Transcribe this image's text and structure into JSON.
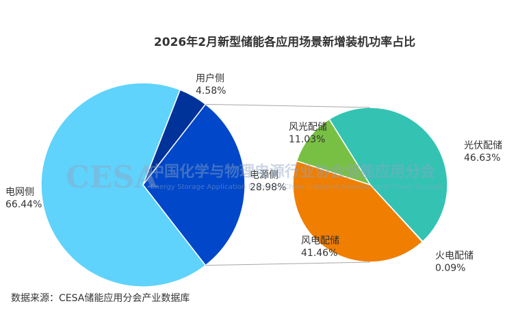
{
  "chart_data": [
    {
      "type": "pie",
      "title": "2026年2月新型储能各应用场景新增装机功率占比",
      "categories": [
        "电网侧",
        "用户侧",
        "电源侧"
      ],
      "values": [
        66.44,
        4.58,
        28.98
      ],
      "value_labels": [
        "66.44%",
        "4.58%",
        "28.98%"
      ],
      "colors": [
        "#5fd3fc",
        "#003399",
        "#0047c9"
      ]
    },
    {
      "type": "pie",
      "categories": [
        "光伏配储",
        "火电配储",
        "风电配储",
        "风光配储"
      ],
      "values": [
        46.63,
        0.09,
        41.46,
        11.03
      ],
      "value_labels": [
        "46.63%",
        "0.09%",
        "41.46%",
        "11.03%"
      ],
      "colors": [
        "#34c3b3",
        "#e0506a",
        "#f07e00",
        "#78c043"
      ]
    }
  ],
  "source_text": "数据来源：CESA储能应用分会产业数据库",
  "watermark": {
    "logo": "CESA",
    "name_cn": "中国化学与物理电源行业协会储能应用分会",
    "name_en": "Energy Storage Application Branch of China Industrial Association of Power Sources"
  }
}
